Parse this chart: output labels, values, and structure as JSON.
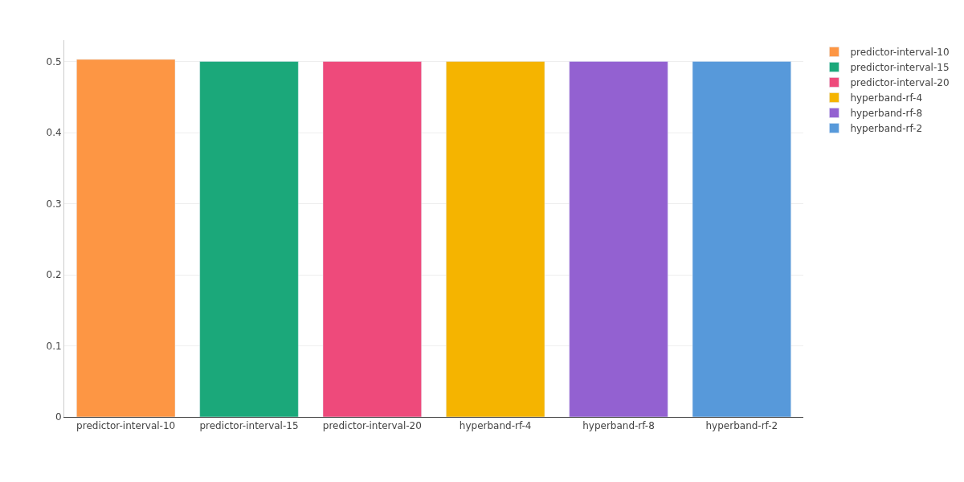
{
  "chart_data": {
    "type": "bar",
    "categories": [
      "predictor-interval-10",
      "predictor-interval-15",
      "predictor-interval-20",
      "hyperband-rf-4",
      "hyperband-rf-8",
      "hyperband-rf-2"
    ],
    "series": [
      {
        "name": "predictor-interval-10",
        "color": "#fd9644",
        "values": [
          0.503,
          null,
          null,
          null,
          null,
          null
        ]
      },
      {
        "name": "predictor-interval-15",
        "color": "#1ba87a",
        "values": [
          null,
          0.5,
          null,
          null,
          null,
          null
        ]
      },
      {
        "name": "predictor-interval-20",
        "color": "#ee4a7b",
        "values": [
          null,
          null,
          0.5,
          null,
          null,
          null
        ]
      },
      {
        "name": "hyperband-rf-4",
        "color": "#f5b400",
        "values": [
          null,
          null,
          null,
          0.5,
          null,
          null
        ]
      },
      {
        "name": "hyperband-rf-8",
        "color": "#9361d1",
        "values": [
          null,
          null,
          null,
          null,
          0.5,
          null
        ]
      },
      {
        "name": "hyperband-rf-2",
        "color": "#5799da",
        "values": [
          null,
          null,
          null,
          null,
          null,
          0.5
        ]
      }
    ],
    "ylim": [
      0,
      0.53
    ],
    "yticks": [
      0,
      0.1,
      0.2,
      0.3,
      0.4,
      0.5
    ],
    "grid": "y",
    "legend": "top right"
  }
}
